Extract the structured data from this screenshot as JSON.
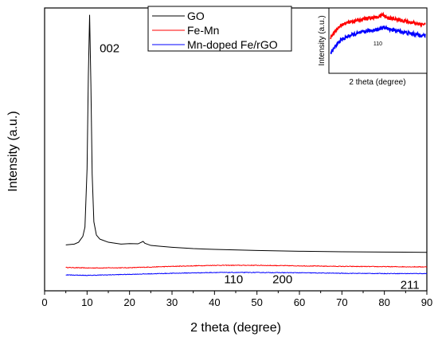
{
  "chart_data": [
    {
      "type": "line",
      "xlabel": "2 theta (degree)",
      "ylabel": "Intensity (a.u.)",
      "xlim": [
        0,
        90
      ],
      "ylim": [
        0,
        100
      ],
      "xticks": [
        "0",
        "10",
        "20",
        "30",
        "40",
        "50",
        "60",
        "70",
        "80",
        "90"
      ],
      "grid": false,
      "legend_position": "top-center",
      "series": [
        {
          "name": "GO",
          "color": "#000000",
          "x": [
            5,
            7,
            8,
            9,
            9.5,
            10,
            10.3,
            10.6,
            10.9,
            11.2,
            11.6,
            12.2,
            13,
            15,
            18,
            20,
            22,
            23.2,
            23.6,
            25,
            27,
            30,
            35,
            40,
            50,
            60,
            70,
            80,
            90
          ],
          "y": [
            11.3,
            11.6,
            12.3,
            14.5,
            18,
            40,
            75,
            98,
            72,
            38,
            20,
            15,
            13.5,
            12.3,
            11.6,
            11.8,
            11.7,
            12.6,
            11.9,
            11.1,
            10.8,
            10.4,
            9.9,
            9.6,
            9.2,
            8.9,
            8.7,
            8.6,
            8.5
          ]
        },
        {
          "name": "Fe-Mn",
          "color": "#ff0000",
          "x": [
            5,
            10,
            20,
            30,
            40,
            50,
            60,
            70,
            80,
            90
          ],
          "y": [
            2.8,
            2.6,
            2.7,
            3.2,
            3.6,
            3.6,
            3.4,
            3.2,
            3.1,
            3.0
          ],
          "noise": 0.25
        },
        {
          "name": "Mn-doped Fe/rGO",
          "color": "#0000ff",
          "x": [
            5,
            10,
            20,
            30,
            40,
            50,
            60,
            70,
            80,
            90
          ],
          "y": [
            0.0,
            -0.2,
            0.2,
            0.6,
            0.9,
            0.9,
            0.8,
            0.6,
            0.5,
            0.5
          ],
          "noise": 0.22
        }
      ],
      "annotations": [
        {
          "text": "002",
          "x": 15.3,
          "y": 84
        },
        {
          "text": "110",
          "x": 44.5,
          "y": -3.2
        },
        {
          "text": "200",
          "x": 56,
          "y": -3.2
        },
        {
          "text": "211",
          "x": 86,
          "y": -5.2
        }
      ]
    },
    {
      "type": "line",
      "role": "inset",
      "xlabel": "2 theta (degree)",
      "ylabel": "Intensity (a.u.)",
      "series": [
        {
          "name": "Fe-Mn",
          "color": "#ff0000",
          "x": [
            0,
            0.1,
            0.2,
            0.3,
            0.4,
            0.5,
            0.55,
            0.6,
            0.7,
            0.8,
            0.9,
            1.0
          ],
          "y": [
            0.55,
            0.74,
            0.8,
            0.83,
            0.86,
            0.88,
            0.92,
            0.87,
            0.84,
            0.81,
            0.78,
            0.76
          ],
          "noise": 0.025
        },
        {
          "name": "Mn-doped Fe/rGO",
          "color": "#0000ff",
          "x": [
            0,
            0.1,
            0.2,
            0.3,
            0.4,
            0.5,
            0.55,
            0.6,
            0.7,
            0.8,
            0.9,
            1.0
          ],
          "y": [
            0.3,
            0.5,
            0.58,
            0.62,
            0.66,
            0.68,
            0.72,
            0.69,
            0.66,
            0.63,
            0.6,
            0.58
          ],
          "noise": 0.03
        }
      ],
      "annotations": [
        {
          "text": "110",
          "x": 0.5,
          "y": 0.42
        }
      ]
    }
  ]
}
